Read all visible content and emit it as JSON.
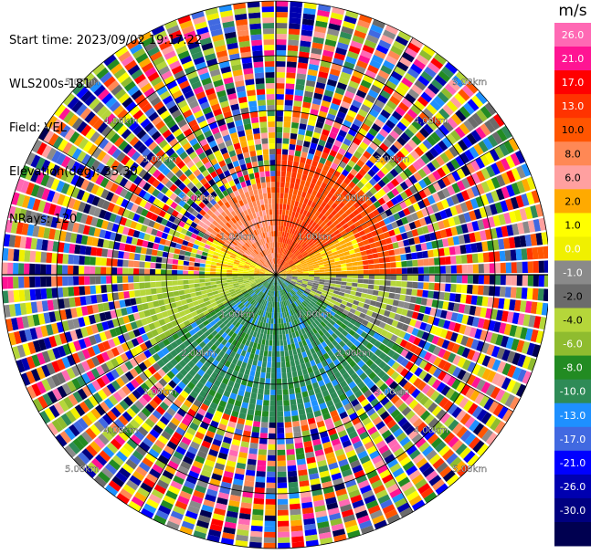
{
  "header": {
    "start_time": "Start time: 2023/09/02 19:17:22",
    "station": "WLS200s-181",
    "field": "Field: VEL",
    "elevation": "Elevation(deg): 35.30",
    "nrays": "NRays: 120"
  },
  "chart_data": {
    "type": "ppi-polar-scan",
    "field": "VEL",
    "units": "m/s",
    "n_rays": 120,
    "max_range_km": 5.0,
    "range_rings_km": [
      1.0,
      2.0,
      3.0,
      4.0,
      5.0
    ],
    "range_ring_labels": [
      "1.00km",
      "2.00km",
      "3.00km",
      "4.00km",
      "5.00km"
    ],
    "colorbar": {
      "ticks": [
        "26.0",
        "21.0",
        "17.0",
        "13.0",
        "10.0",
        "8.0",
        "6.0",
        "2.0",
        "1.0",
        "0.0",
        "-1.0",
        "-2.0",
        "-4.0",
        "-6.0",
        "-8.0",
        "-10.0",
        "-13.0",
        "-17.0",
        "-21.0",
        "-26.0",
        "-30.0"
      ],
      "colors": [
        "#ff69b4",
        "#ff1493",
        "#ff0000",
        "#ff3300",
        "#ff5500",
        "#ff8855",
        "#ffa0a0",
        "#ffaa00",
        "#ffff00",
        "#f0f000",
        "#8a8a8a",
        "#6b6b6b",
        "#b5d63a",
        "#8fbc2f",
        "#228b22",
        "#2e8b57",
        "#1e90ff",
        "#4169e1",
        "#0000ff",
        "#0000b0",
        "#000080",
        "#000050"
      ]
    },
    "sectors": [
      {
        "az_from": 0,
        "az_to": 90,
        "velocity": 13.0,
        "to_km": 2.3
      },
      {
        "az_from": 60,
        "az_to": 90,
        "velocity": 3.0,
        "to_km": 1.6
      },
      {
        "az_from": 90,
        "az_to": 120,
        "velocity": -2.0,
        "to_km": 2.6
      },
      {
        "az_from": 120,
        "az_to": 240,
        "velocity": -9.0,
        "to_km": 2.8
      },
      {
        "az_from": 240,
        "az_to": 270,
        "velocity": -4.0,
        "to_km": 2.6
      },
      {
        "az_from": 270,
        "az_to": 300,
        "velocity": 1.5,
        "to_km": 1.4
      },
      {
        "az_from": 300,
        "az_to": 360,
        "velocity": 9.0,
        "to_km": 1.8
      }
    ]
  }
}
